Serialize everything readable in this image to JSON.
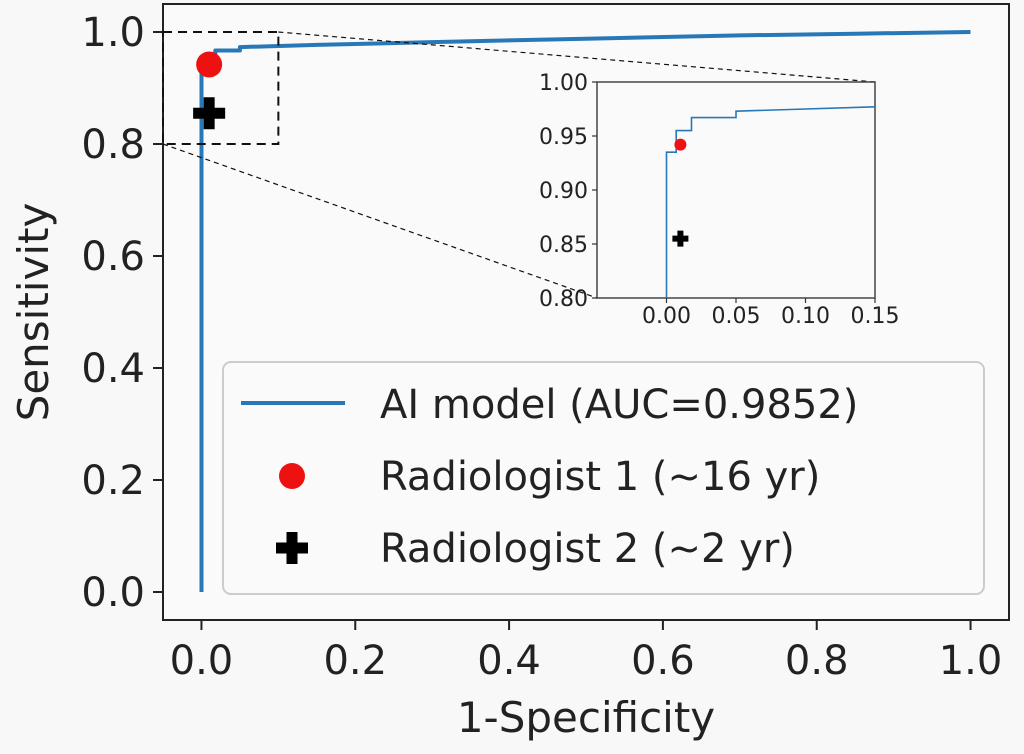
{
  "chart_data": {
    "type": "line",
    "xlabel": "1-Specificity",
    "ylabel": "Sensitivity",
    "xlim": [
      -0.05,
      1.05
    ],
    "ylim": [
      -0.05,
      1.05
    ],
    "xticks": [
      "0.0",
      "0.2",
      "0.4",
      "0.6",
      "0.8",
      "1.0"
    ],
    "yticks": [
      "0.0",
      "0.2",
      "0.4",
      "0.6",
      "0.8",
      "1.0"
    ],
    "grid": false,
    "legend_position": "bottom-right",
    "series": [
      {
        "name": "AI model (AUC=0.9852)",
        "kind": "line",
        "color": "#2878b8",
        "points": [
          [
            0.0,
            0.0
          ],
          [
            0.0,
            0.935
          ],
          [
            0.007,
            0.935
          ],
          [
            0.007,
            0.955
          ],
          [
            0.018,
            0.955
          ],
          [
            0.018,
            0.967
          ],
          [
            0.05,
            0.967
          ],
          [
            0.05,
            0.973
          ],
          [
            0.15,
            0.977
          ],
          [
            0.3,
            0.982
          ],
          [
            0.5,
            0.988
          ],
          [
            0.7,
            0.994
          ],
          [
            0.85,
            0.997
          ],
          [
            1.0,
            1.0
          ]
        ]
      },
      {
        "name": "Radiologist 1 (~16 yr)",
        "kind": "point",
        "marker": "circle",
        "color": "#ee1111",
        "x": 0.01,
        "y": 0.942
      },
      {
        "name": "Radiologist 2 (~2 yr)",
        "kind": "point",
        "marker": "plus",
        "color": "#000000",
        "x": 0.01,
        "y": 0.855
      }
    ],
    "zoom_box": {
      "xlim": [
        -0.05,
        0.1
      ],
      "ylim": [
        0.8,
        1.0
      ]
    },
    "inset": {
      "xlim": [
        -0.05,
        0.15
      ],
      "ylim": [
        0.8,
        1.0
      ],
      "xticks": [
        "0.00",
        "0.05",
        "0.10",
        "0.15"
      ],
      "yticks": [
        "0.80",
        "0.85",
        "0.90",
        "0.95",
        "1.00"
      ]
    }
  }
}
